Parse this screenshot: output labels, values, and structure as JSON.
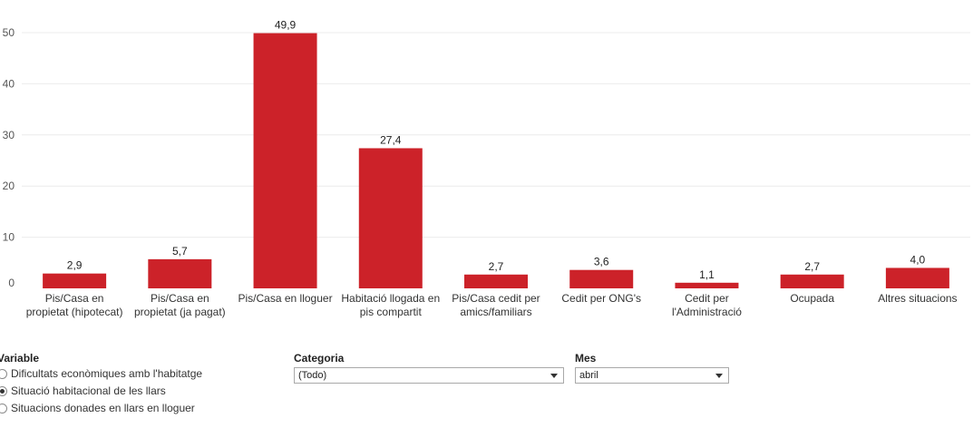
{
  "chart_data": {
    "type": "bar",
    "categories": [
      [
        "Pis/Casa en",
        "propietat (hipotecat)"
      ],
      [
        "Pis/Casa en",
        "propietat (ja pagat)"
      ],
      [
        "Pis/Casa en lloguer"
      ],
      [
        "Habitació llogada en",
        "pis compartit"
      ],
      [
        "Pis/Casa cedit per",
        "amics/familiars"
      ],
      [
        "Cedit per ONG's"
      ],
      [
        "Cedit per",
        "l'Administració"
      ],
      [
        "Ocupada"
      ],
      [
        "Altres situacions"
      ]
    ],
    "values": [
      2.9,
      5.7,
      49.9,
      27.4,
      2.7,
      3.6,
      1.1,
      2.7,
      4.0
    ],
    "value_labels": [
      "2,9",
      "5,7",
      "49,9",
      "27,4",
      "2,7",
      "3,6",
      "1,1",
      "2,7",
      "4,0"
    ],
    "yticks": [
      0,
      10,
      20,
      30,
      40,
      50
    ],
    "ylim": [
      0,
      50
    ],
    "grid": true,
    "bar_color": "#cc2229"
  },
  "controls": {
    "variable": {
      "title": "Variable",
      "options": [
        {
          "label": "Dificultats econòmiques amb l'habitatge",
          "checked": false
        },
        {
          "label": "Situació habitacional de les llars",
          "checked": true
        },
        {
          "label": "Situacions donades en llars en lloguer",
          "checked": false
        }
      ]
    },
    "categoria": {
      "title": "Categoria",
      "value": "(Todo)"
    },
    "mes": {
      "title": "Mes",
      "value": "abril"
    }
  }
}
